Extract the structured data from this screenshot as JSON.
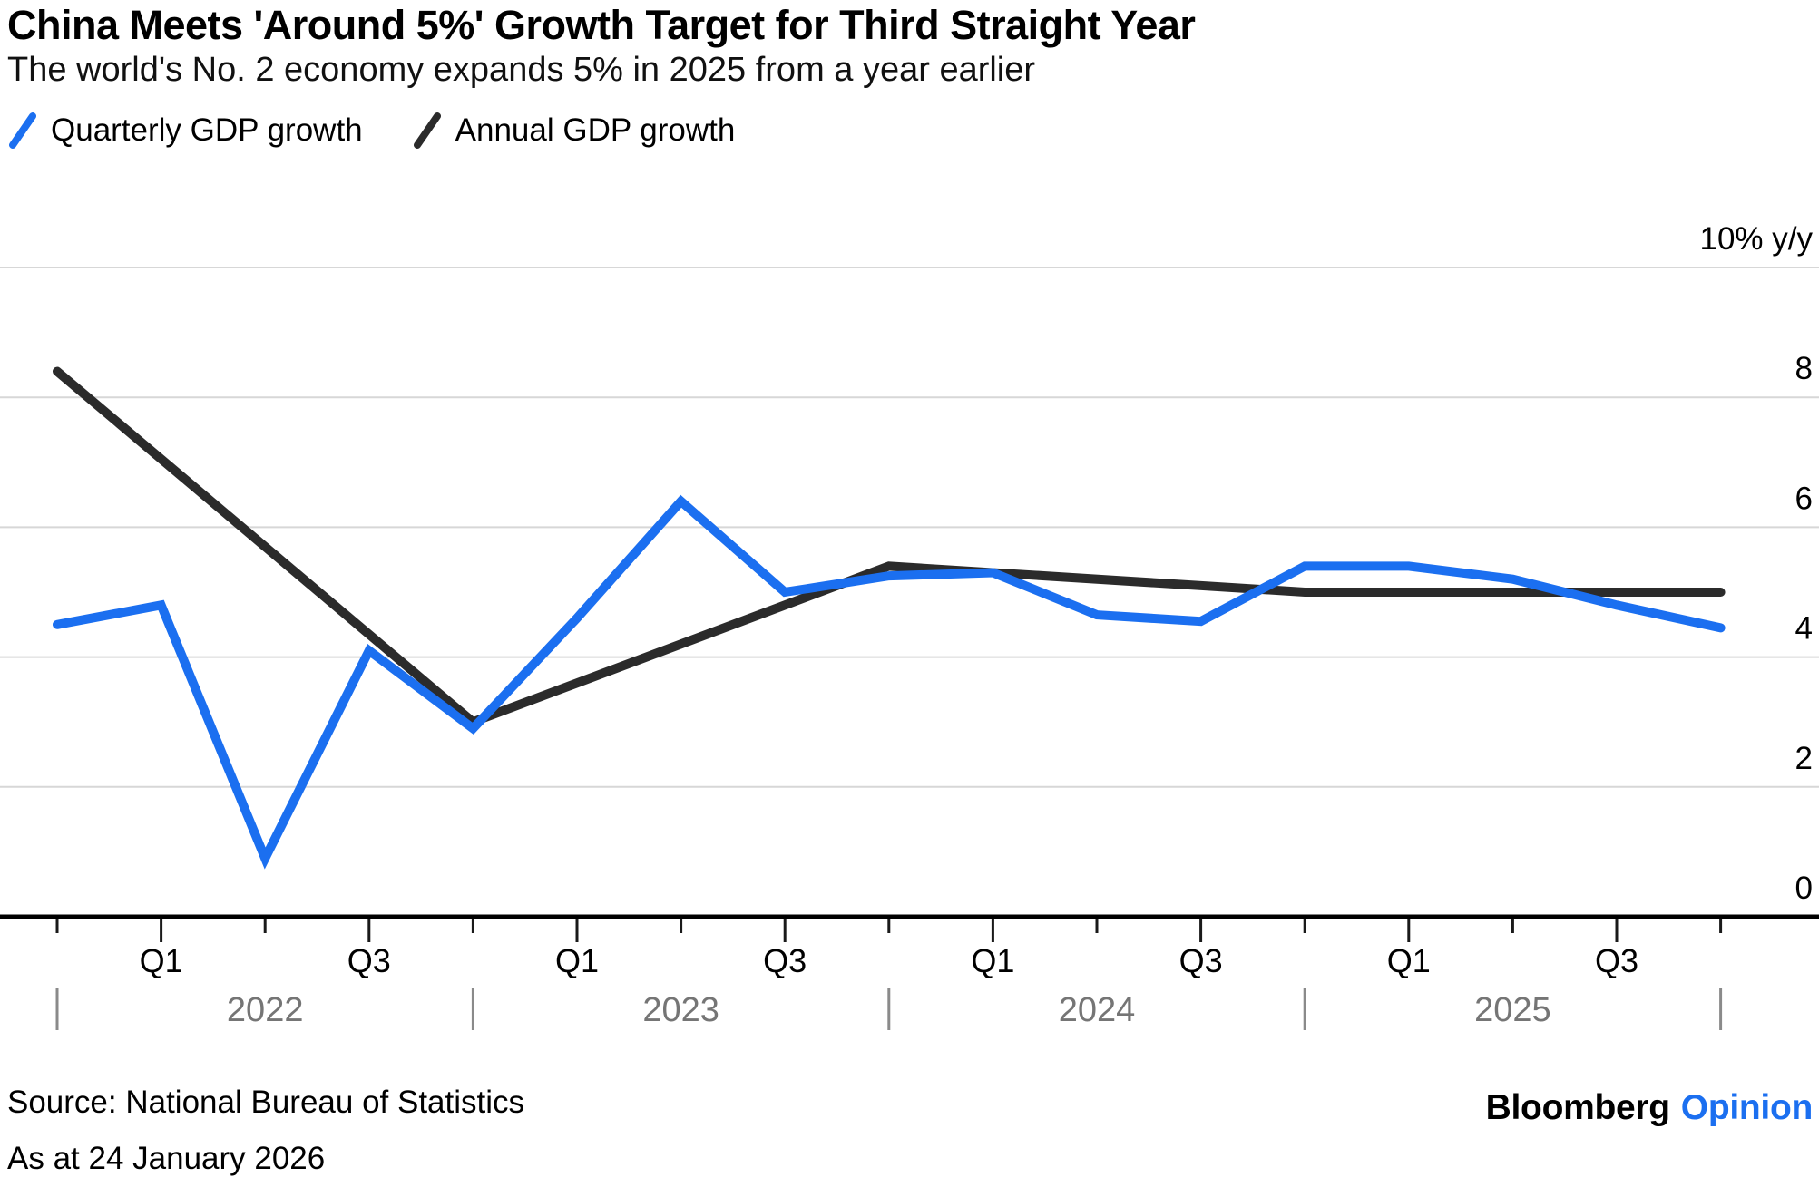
{
  "header": {
    "title": "China Meets 'Around 5%' Growth Target for Third Straight Year",
    "subtitle": "The world's No. 2 economy expands 5% in 2025 from a year earlier"
  },
  "legend": [
    {
      "label": "Quarterly GDP growth",
      "color": "#1b6ff0"
    },
    {
      "label": "Annual GDP growth",
      "color": "#2b2b2b"
    }
  ],
  "footer": {
    "source": "Source: National Bureau of Statistics",
    "as_at": "As at 24 January 2026",
    "brand": "Bloomberg",
    "brand_suffix": "Opinion",
    "brand_suffix_color": "#1b6ff0"
  },
  "chart_data": {
    "type": "line",
    "title": "China Meets 'Around 5%' Growth Target for Third Straight Year",
    "subtitle": "The world's No. 2 economy expands 5% in 2025 from a year earlier",
    "x_unit": "quarter",
    "quarters": [
      "Q4 2021",
      "Q1 2022",
      "Q2 2022",
      "Q3 2022",
      "Q4 2022",
      "Q1 2023",
      "Q2 2023",
      "Q3 2023",
      "Q4 2023",
      "Q1 2024",
      "Q2 2024",
      "Q3 2024",
      "Q4 2024",
      "Q1 2025",
      "Q2 2025",
      "Q3 2025",
      "Q4 2025"
    ],
    "series": [
      {
        "name": "Quarterly GDP growth",
        "color": "#1b6ff0",
        "values": [
          4.5,
          4.8,
          0.9,
          4.1,
          2.9,
          4.6,
          6.4,
          5.0,
          5.25,
          5.3,
          4.65,
          4.55,
          5.4,
          5.4,
          5.2,
          4.8,
          4.45
        ]
      },
      {
        "name": "Annual GDP growth",
        "color": "#2b2b2b",
        "plotted_at_quarters": [
          "Q4 2021",
          "Q4 2022",
          "Q4 2023",
          "Q4 2024",
          "Q4 2025"
        ],
        "years": [
          "2021",
          "2022",
          "2023",
          "2024",
          "2025"
        ],
        "values": [
          8.4,
          3.0,
          5.4,
          5.0,
          5.0
        ]
      }
    ],
    "y_axis": {
      "range": [
        0,
        10
      ],
      "unit_suffix": "% y/y",
      "ticks": [
        {
          "value": 10,
          "label": "10% y/y"
        },
        {
          "value": 8,
          "label": "8"
        },
        {
          "value": 6,
          "label": "6"
        },
        {
          "value": 4,
          "label": "4"
        },
        {
          "value": 2,
          "label": "2"
        },
        {
          "value": 0,
          "label": "0"
        }
      ]
    },
    "x_axis": {
      "quarter_tick_labels": [
        "",
        "Q1",
        "",
        "Q3",
        "",
        "Q1",
        "",
        "Q3",
        "",
        "Q1",
        "",
        "Q3",
        "",
        "Q1",
        "",
        "Q3",
        ""
      ],
      "years": [
        "2022",
        "2023",
        "2024",
        "2025"
      ]
    },
    "grid": true,
    "legend_position": "top",
    "colors": {
      "grid": "#d7d7d7",
      "axis": "#000000",
      "year_label": "#757575",
      "year_separator": "#8a8a8a"
    }
  }
}
